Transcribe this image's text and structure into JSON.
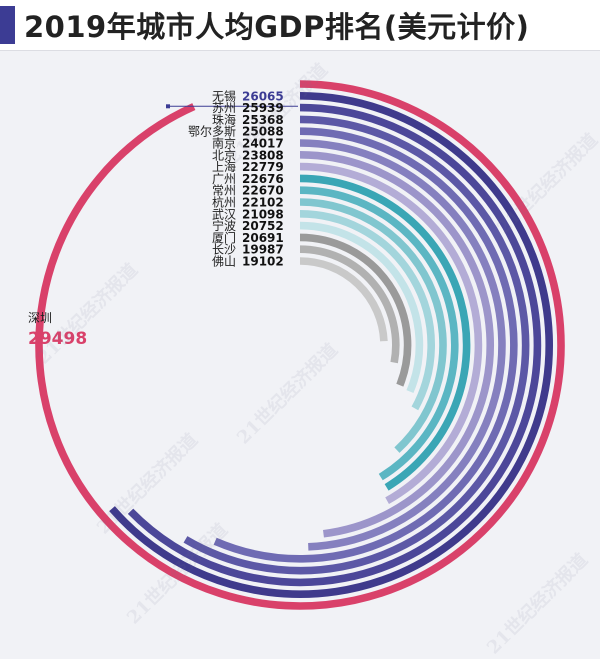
{
  "page": {
    "title": "2019年城市人均GDP排名(美元计价)",
    "watermark": "21世纪经济报道"
  },
  "colors": {
    "background": "#f1f2f6",
    "header_accent": "#3c3c94",
    "highlight_label": "#3c3c94",
    "shenzhen_value": "#d9416a"
  },
  "chart_data": {
    "type": "radial-bar",
    "title": "2019年城市人均GDP排名(美元计价)",
    "unit": "美元",
    "series": [
      {
        "city": "深圳",
        "value": 29498,
        "color": "#d9416a"
      },
      {
        "city": "无锡",
        "value": 26065,
        "color": "#3f3a8c"
      },
      {
        "city": "苏州",
        "value": 25939,
        "color": "#4c4799"
      },
      {
        "city": "珠海",
        "value": 25368,
        "color": "#5c58a6"
      },
      {
        "city": "鄂尔多斯",
        "value": 25088,
        "color": "#6f6bb3"
      },
      {
        "city": "南京",
        "value": 24017,
        "color": "#8580bf"
      },
      {
        "city": "北京",
        "value": 23808,
        "color": "#9c95ca"
      },
      {
        "city": "上海",
        "value": 22779,
        "color": "#b3acd6"
      },
      {
        "city": "广州",
        "value": 22676,
        "color": "#3aa6b5"
      },
      {
        "city": "常州",
        "value": 22670,
        "color": "#5bb6c3"
      },
      {
        "city": "杭州",
        "value": 22102,
        "color": "#80c6cf"
      },
      {
        "city": "武汉",
        "value": 21098,
        "color": "#a3d5dc"
      },
      {
        "city": "宁波",
        "value": 20752,
        "color": "#c3e3e8"
      },
      {
        "city": "厦门",
        "value": 20691,
        "color": "#9a9a9a"
      },
      {
        "city": "长沙",
        "value": 19987,
        "color": "#b1b1b1"
      },
      {
        "city": "佛山",
        "value": 19102,
        "color": "#c9c9c9"
      }
    ]
  }
}
